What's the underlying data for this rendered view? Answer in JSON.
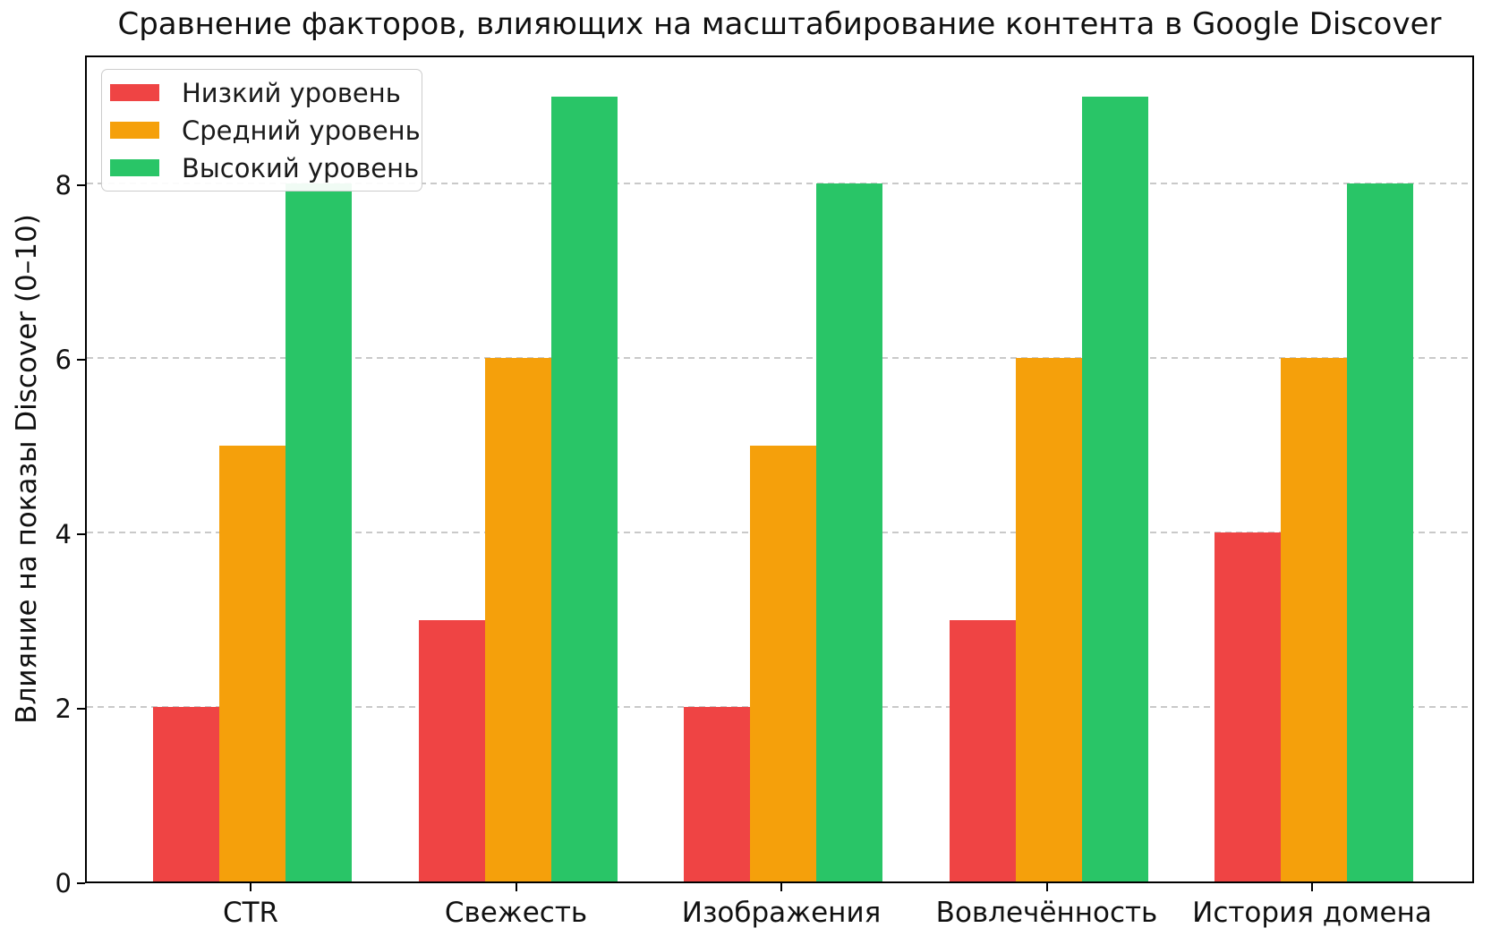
{
  "chart_data": {
    "type": "bar",
    "title": "Сравнение факторов, влияющих на масштабирование контента в Google Discover",
    "xlabel": "",
    "ylabel": "Влияние на показы Discover (0–10)",
    "categories": [
      "CTR",
      "Свежесть",
      "Изображения",
      "Вовлечённость",
      "История домена"
    ],
    "series": [
      {
        "name": "Низкий уровень",
        "color": "#ef4444",
        "values": [
          2,
          3,
          2,
          3,
          4
        ]
      },
      {
        "name": "Средний уровень",
        "color": "#f5a00b",
        "values": [
          5,
          6,
          5,
          6,
          6
        ]
      },
      {
        "name": "Высокий уровень",
        "color": "#29c567",
        "values": [
          8,
          9,
          8,
          9,
          8
        ]
      }
    ],
    "yticks": [
      0,
      2,
      4,
      6,
      8
    ],
    "ylim": [
      0,
      9.49
    ],
    "grid": true,
    "grid_axis": "y",
    "grid_style": "dashed",
    "legend_position": "upper left",
    "plot_border": "full-box"
  }
}
